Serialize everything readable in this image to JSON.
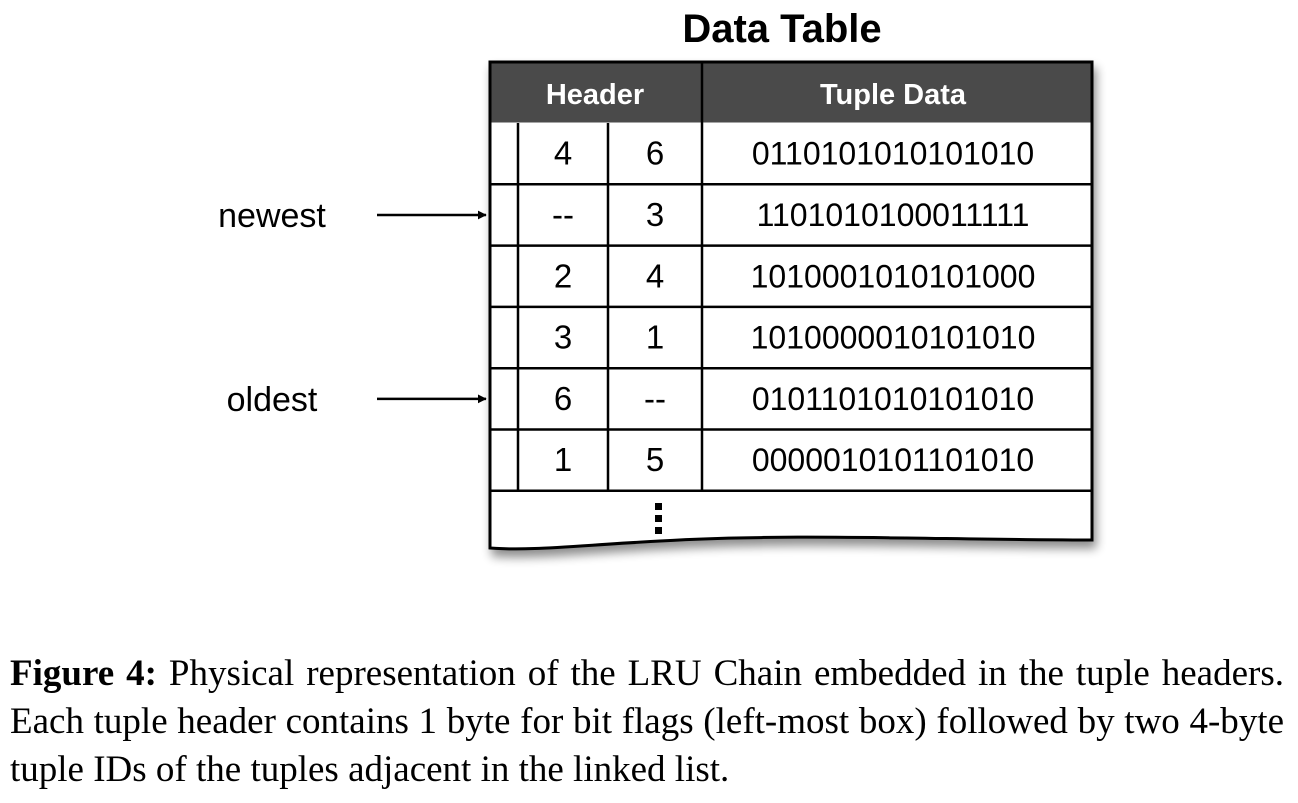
{
  "diagram": {
    "title": "Data Table",
    "header_labels": {
      "header": "Header",
      "tuple_data": "Tuple Data"
    },
    "rows": [
      {
        "prev": "4",
        "next": "6",
        "data": "0110101010101010"
      },
      {
        "prev": "--",
        "next": "3",
        "data": "1101010100011111"
      },
      {
        "prev": "2",
        "next": "4",
        "data": "1010001010101000"
      },
      {
        "prev": "3",
        "next": "1",
        "data": "1010000010101010"
      },
      {
        "prev": "6",
        "next": "--",
        "data": "0101101010101010"
      },
      {
        "prev": "1",
        "next": "5",
        "data": "0000010101101010"
      }
    ],
    "continuation": "⋮",
    "pointers": [
      {
        "label": "newest",
        "row": 1
      },
      {
        "label": "oldest",
        "row": 4
      }
    ],
    "colors": {
      "header_fill": "#4a4a4a",
      "header_text": "#ffffff",
      "border": "#000000"
    }
  },
  "caption": {
    "label": "Figure 4:",
    "text": "Physical representation of the LRU Chain embedded in the tuple headers.  Each tuple header contains 1 byte for bit flags (left-most box) followed by two 4-byte tuple IDs of the tuples adjacent in the linked list."
  }
}
